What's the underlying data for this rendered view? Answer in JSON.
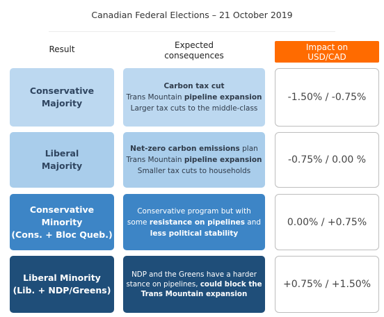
{
  "title": "Canadian Federal Elections – 21 October 2019",
  "headers": {
    "result": "Result",
    "expected_line1": "Expected",
    "expected_line2": "consequences",
    "impact_line1": "Impact on",
    "impact_line2": "USD/CAD"
  },
  "colors": {
    "accent_orange": "#ff6b00",
    "light_blue_1": "#bcd8f0",
    "light_blue_2": "#a9cdeb",
    "mid_blue": "#3d85c6",
    "dark_blue": "#1f4e79"
  },
  "rows": [
    {
      "result_line1": "Conservative",
      "result_line2": "Majority",
      "exp_line1": "Carbon tax cut",
      "exp_line2_a": "Trans Mountain ",
      "exp_line2_b": "pipeline expansion",
      "exp_line3": "Larger tax cuts to the middle-class",
      "impact": "-1.50% / -0.75%"
    },
    {
      "result_line1": "Liberal",
      "result_line2": "Majority",
      "exp_line1_a": "Net-zero carbon emissions",
      "exp_line1_b": " plan",
      "exp_line2_a": "Trans Mountain ",
      "exp_line2_b": "pipeline expansion",
      "exp_line3": "Smaller tax cuts to households",
      "impact": "-0.75% / 0.00 %"
    },
    {
      "result_line1": "Conservative",
      "result_line2": "Minority",
      "result_line3": "(Cons. + Bloc Queb.)",
      "exp_line1": "Conservative program but with",
      "exp_line2_a": "some ",
      "exp_line2_b": "resistance on pipelines",
      "exp_line2_c": " and",
      "exp_line3": "less political stability",
      "impact": "0.00% / +0.75%"
    },
    {
      "result_line1": "Liberal Minority",
      "result_line2": "(Lib. + NDP/Greens)",
      "exp_line1": "NDP and the Greens have a harder",
      "exp_line2_a": "stance on pipelines, ",
      "exp_line2_b": "could block the",
      "exp_line3": "Trans Mountain expansion",
      "impact": "+0.75% / +1.50%"
    }
  ]
}
